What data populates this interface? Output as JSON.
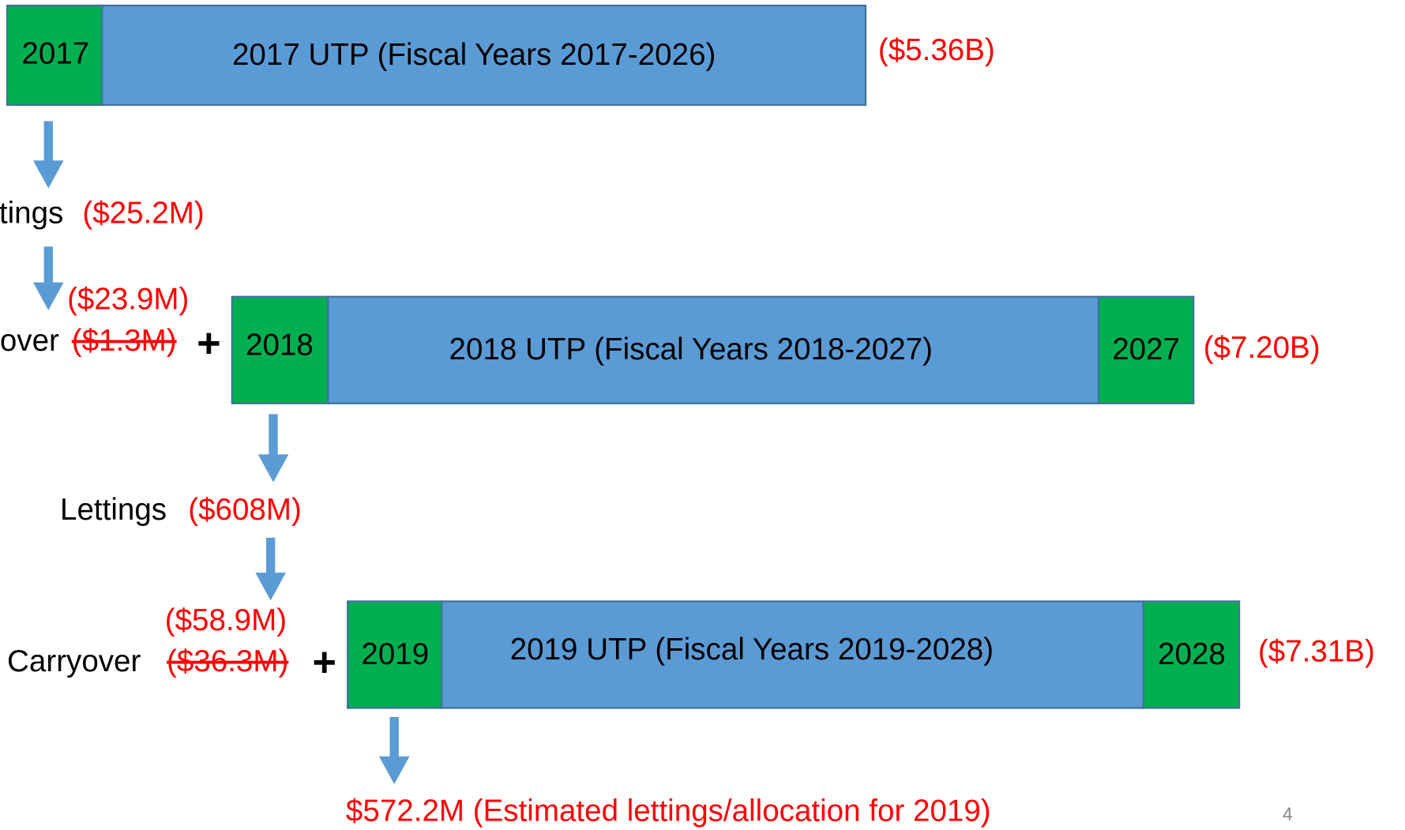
{
  "rows": [
    {
      "start_year": "2017",
      "title": "2017 UTP (Fiscal Years 2017-2026)",
      "total": "($5.36B)"
    },
    {
      "start_year": "2018",
      "title": "2018 UTP (Fiscal Years 2018-2027)",
      "end_year": "2027",
      "total": "($7.20B)"
    },
    {
      "start_year": "2019",
      "title": "2019 UTP (Fiscal Years 2019-2028)",
      "end_year": "2028",
      "total": "($7.31B)"
    }
  ],
  "lettings": [
    {
      "label": "tings",
      "amount": "($25.2M)"
    },
    {
      "label": "Lettings",
      "amount": "($608M)"
    }
  ],
  "carryovers": [
    {
      "label": "over",
      "revised": "($23.9M)",
      "struck": "($1.3M)",
      "plus": "+"
    },
    {
      "label": "Carryover",
      "revised": "($58.9M)",
      "struck": "($36.3M)",
      "plus": "+"
    }
  ],
  "result": "$572.2M (Estimated lettings/allocation for 2019)",
  "page_number": "4"
}
